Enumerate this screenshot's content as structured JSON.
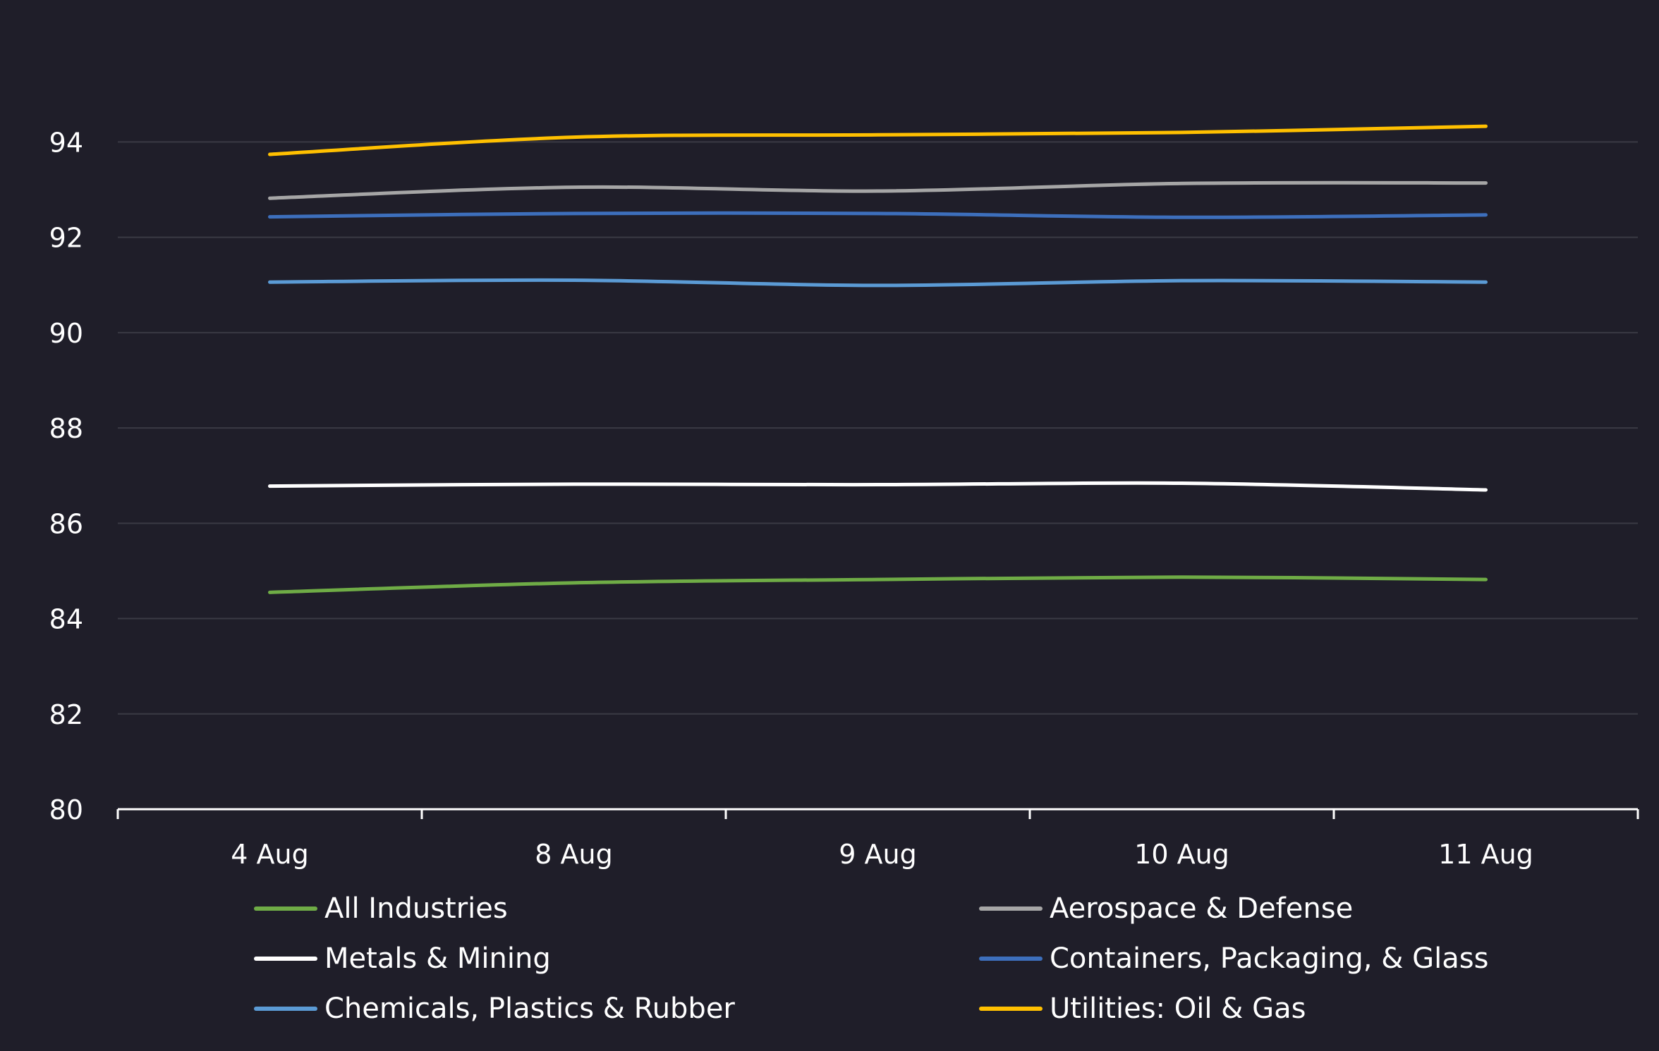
{
  "chart_data": {
    "type": "line",
    "categories": [
      "4 Aug",
      "8 Aug",
      "9 Aug",
      "10 Aug",
      "11 Aug"
    ],
    "ylim": [
      80,
      95.5
    ],
    "yticks": [
      80,
      82,
      84,
      86,
      88,
      90,
      92,
      94
    ],
    "grid": true,
    "legend_position": "bottom",
    "series": [
      {
        "name": "All Industries",
        "color": "#6fac46",
        "values": [
          84.55,
          84.75,
          84.82,
          84.87,
          84.82
        ]
      },
      {
        "name": "Aerospace & Defense",
        "color": "#a6a6a6",
        "values": [
          92.82,
          93.05,
          92.97,
          93.13,
          93.14
        ]
      },
      {
        "name": "Metals & Mining",
        "color": "#ffffff",
        "values": [
          86.78,
          86.82,
          86.81,
          86.84,
          86.7
        ]
      },
      {
        "name": "Containers, Packaging, & Glass",
        "color": "#3d6fbc",
        "values": [
          92.43,
          92.5,
          92.5,
          92.42,
          92.47
        ]
      },
      {
        "name": "Chemicals, Plastics & Rubber",
        "color": "#5b9bd5",
        "values": [
          91.06,
          91.1,
          90.99,
          91.09,
          91.06
        ]
      },
      {
        "name": "Utilities: Oil & Gas",
        "color": "#ffc000",
        "values": [
          93.74,
          94.1,
          94.15,
          94.2,
          94.33
        ]
      }
    ]
  }
}
